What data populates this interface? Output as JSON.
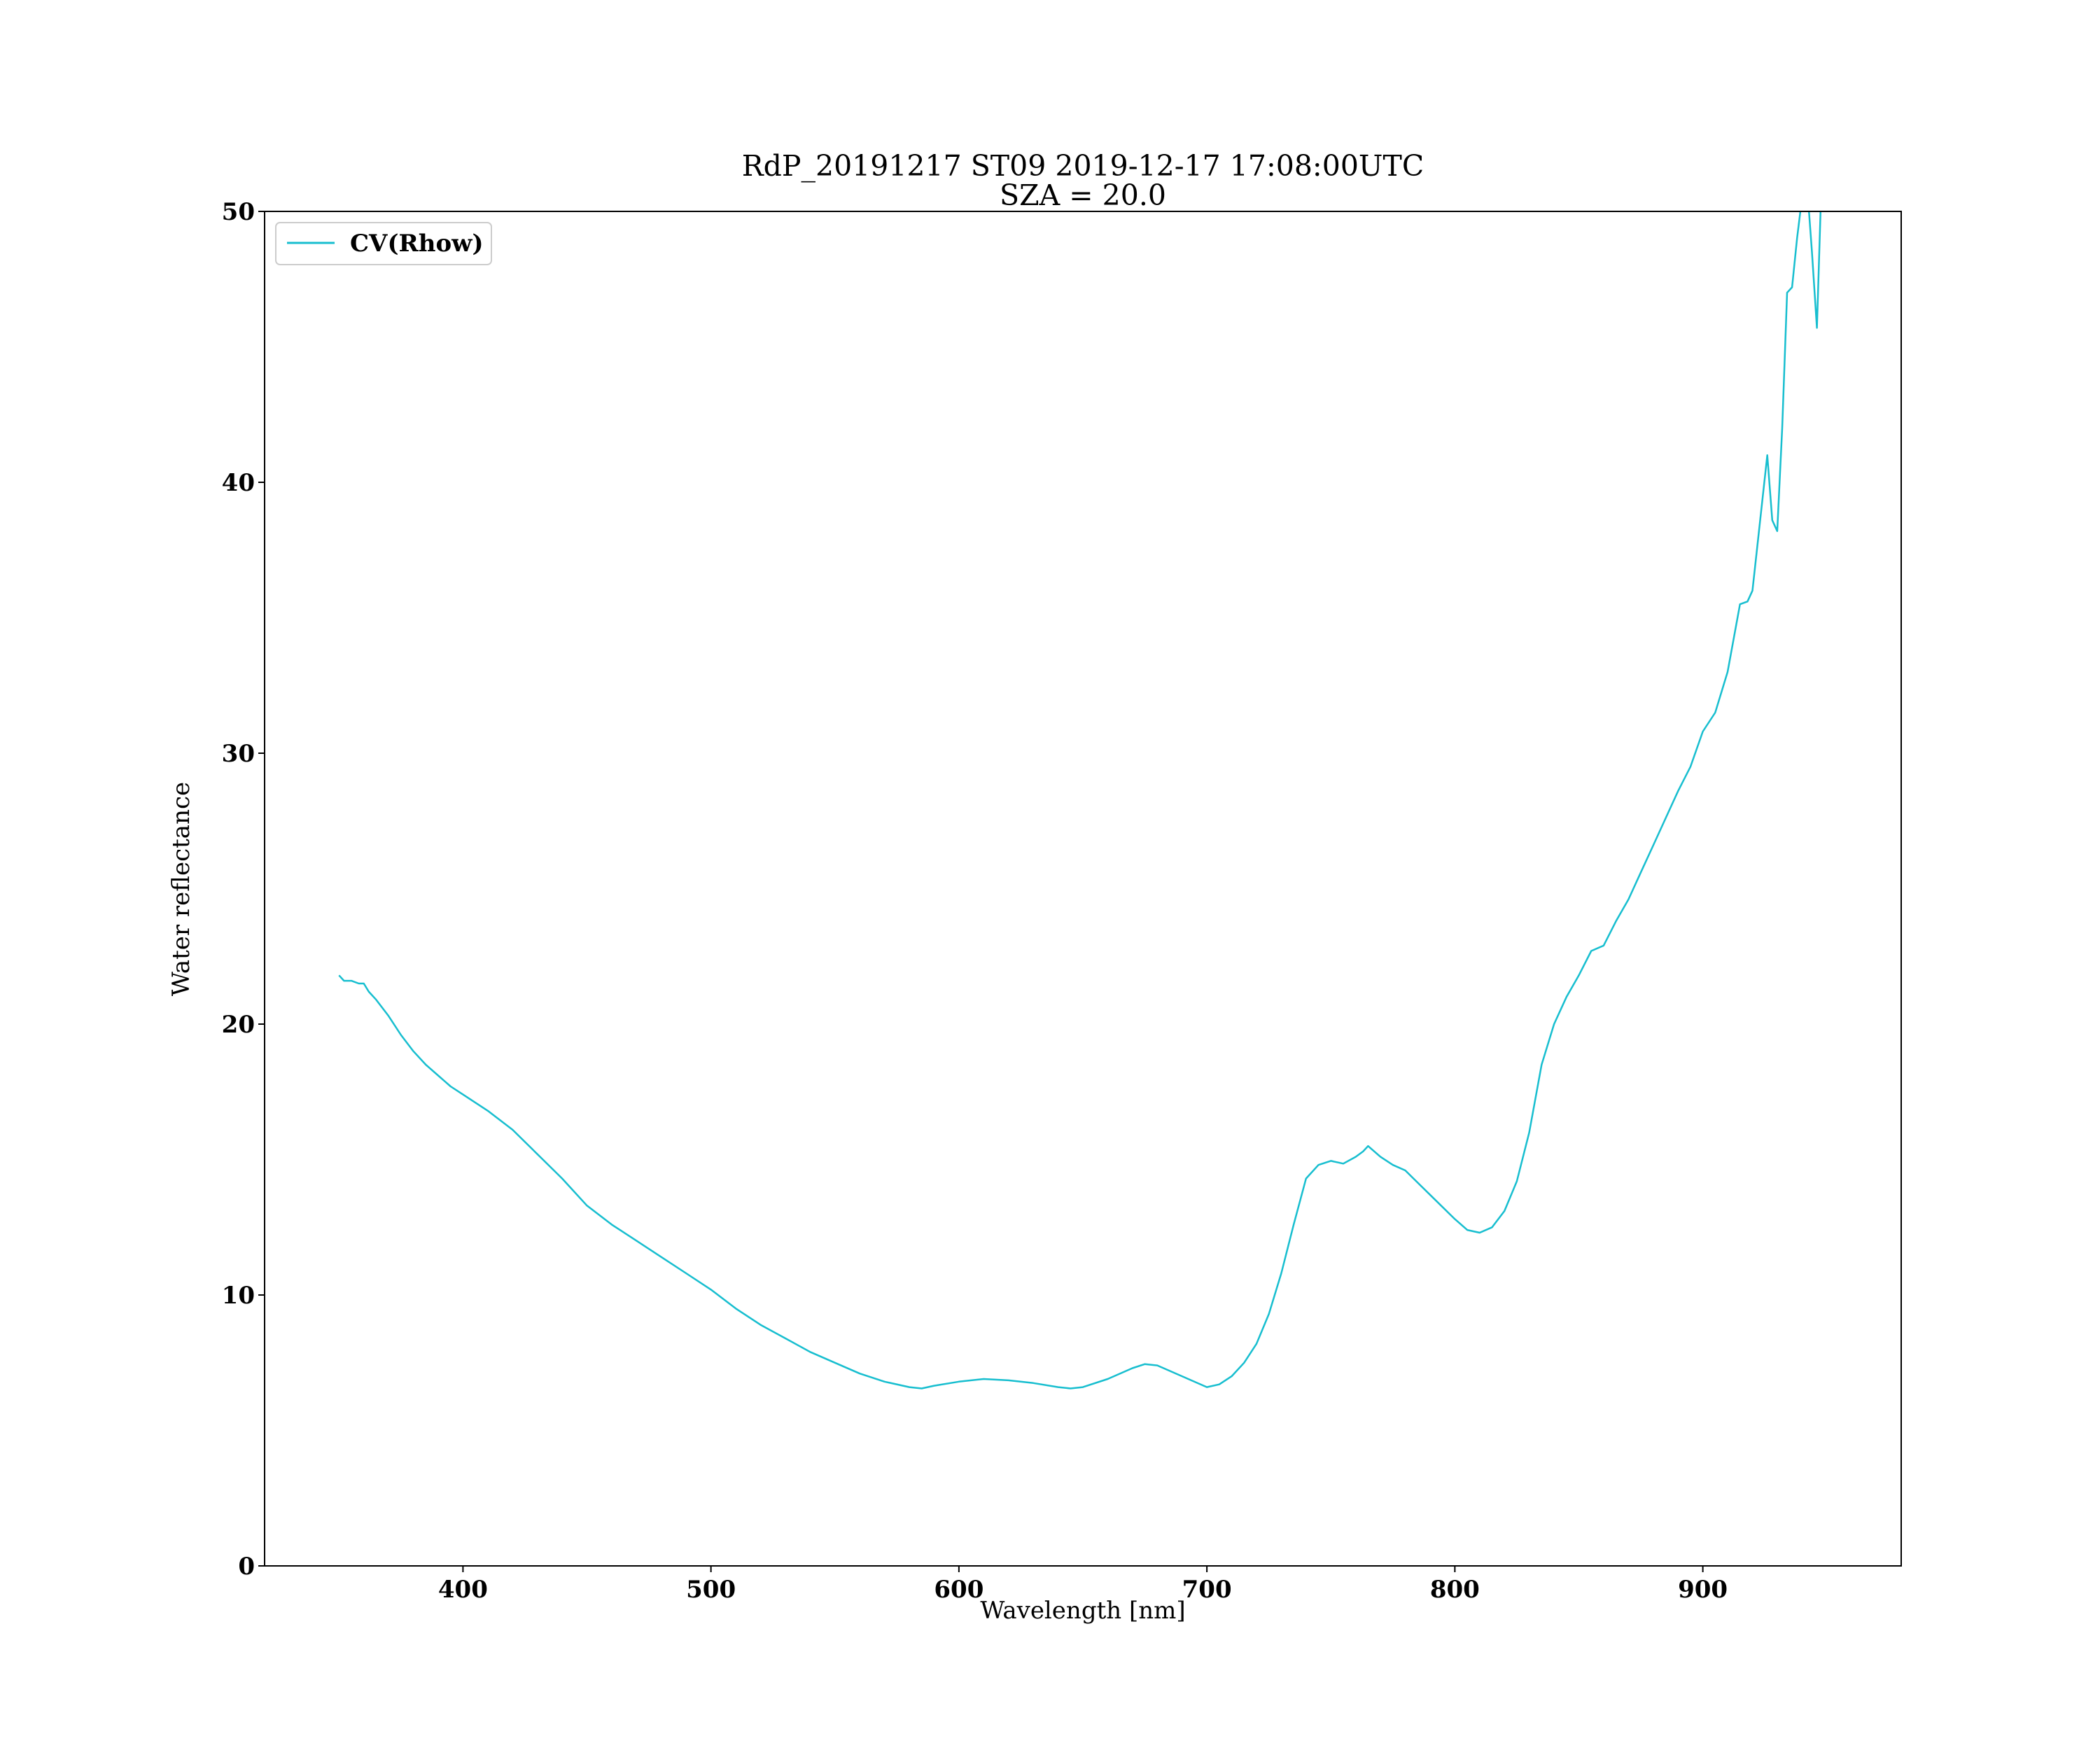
{
  "chart_data": {
    "type": "line",
    "title": "RdP_20191217 ST09 2019-12-17 17:08:00UTC",
    "subtitle": "SZA = 20.0",
    "xlabel": "Wavelength [nm]",
    "ylabel": "Water reflectance",
    "xlim": [
      320,
      980
    ],
    "ylim": [
      0,
      50
    ],
    "xticks": [
      400,
      500,
      600,
      700,
      800,
      900
    ],
    "yticks": [
      0,
      10,
      20,
      30,
      40,
      50
    ],
    "grid": false,
    "legend_position": "upper-left",
    "series": [
      {
        "name": "CV(Rhow)",
        "color": "#17becf",
        "x": [
          350,
          352,
          355,
          358,
          360,
          362,
          365,
          370,
          375,
          380,
          385,
          390,
          395,
          400,
          410,
          420,
          430,
          440,
          450,
          460,
          470,
          480,
          490,
          500,
          510,
          520,
          530,
          540,
          550,
          560,
          570,
          580,
          585,
          590,
          600,
          610,
          620,
          630,
          640,
          645,
          650,
          660,
          670,
          675,
          680,
          690,
          700,
          705,
          710,
          715,
          720,
          725,
          730,
          735,
          740,
          745,
          750,
          755,
          760,
          763,
          765,
          770,
          775,
          780,
          790,
          800,
          805,
          810,
          815,
          820,
          825,
          830,
          835,
          840,
          845,
          850,
          855,
          860,
          865,
          870,
          875,
          880,
          885,
          890,
          895,
          900,
          905,
          910,
          915,
          918,
          920,
          923,
          926,
          928,
          930,
          932,
          934,
          936,
          938,
          940,
          942,
          944,
          946,
          948
        ],
        "values": [
          21.8,
          21.6,
          21.6,
          21.5,
          21.5,
          21.2,
          20.9,
          20.3,
          19.6,
          19.0,
          18.5,
          18.1,
          17.7,
          17.4,
          16.8,
          16.1,
          15.2,
          14.3,
          13.3,
          12.6,
          12.0,
          11.4,
          10.8,
          10.2,
          9.5,
          8.9,
          8.4,
          7.9,
          7.5,
          7.1,
          6.8,
          6.6,
          6.55,
          6.65,
          6.8,
          6.9,
          6.85,
          6.75,
          6.6,
          6.55,
          6.6,
          6.9,
          7.3,
          7.45,
          7.4,
          7.0,
          6.6,
          6.7,
          7.0,
          7.5,
          8.2,
          9.3,
          10.8,
          12.6,
          14.3,
          14.8,
          14.95,
          14.85,
          15.1,
          15.3,
          15.5,
          15.1,
          14.8,
          14.6,
          13.7,
          12.8,
          12.4,
          12.3,
          12.5,
          13.1,
          14.2,
          16.0,
          18.5,
          20.0,
          21.0,
          21.8,
          22.7,
          22.9,
          23.8,
          24.6,
          25.6,
          26.6,
          27.6,
          28.6,
          29.5,
          30.8,
          31.5,
          33.0,
          35.5,
          35.6,
          36.0,
          38.5,
          41.0,
          38.6,
          38.2,
          42.0,
          47.0,
          47.2,
          49.0,
          50.5,
          51.0,
          48.5,
          45.7,
          51.5
        ]
      }
    ]
  }
}
